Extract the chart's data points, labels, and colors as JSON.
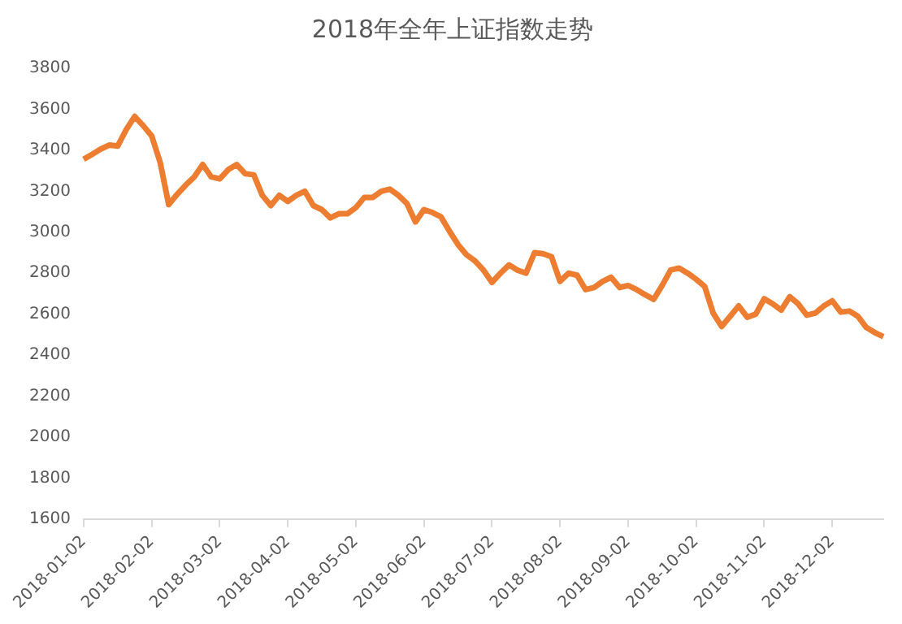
{
  "chart_data": {
    "type": "line",
    "title": "2018年全年上证指数走势",
    "categories": [
      "2018-01-02",
      null,
      null,
      null,
      null,
      null,
      null,
      null,
      "2018-02-02",
      null,
      null,
      null,
      null,
      null,
      null,
      null,
      "2018-03-02",
      null,
      null,
      null,
      null,
      null,
      null,
      null,
      "2018-04-02",
      null,
      null,
      null,
      null,
      null,
      null,
      null,
      "2018-05-02",
      null,
      null,
      null,
      null,
      null,
      null,
      null,
      "2018-06-02",
      null,
      null,
      null,
      null,
      null,
      null,
      null,
      "2018-07-02",
      null,
      null,
      null,
      null,
      null,
      null,
      null,
      "2018-08-02",
      null,
      null,
      null,
      null,
      null,
      null,
      null,
      "2018-09-02",
      null,
      null,
      null,
      null,
      null,
      null,
      null,
      "2018-10-02",
      null,
      null,
      null,
      null,
      null,
      null,
      null,
      "2018-11-02",
      null,
      null,
      null,
      null,
      null,
      null,
      null,
      "2018-12-02",
      null,
      null,
      null,
      null,
      null,
      null
    ],
    "series": [
      {
        "color": "#ed7d31",
        "values": [
          3356,
          3380,
          3405,
          3425,
          3420,
          3500,
          3565,
          3520,
          3470,
          3340,
          3135,
          3185,
          3230,
          3270,
          3330,
          3270,
          3260,
          3305,
          3330,
          3285,
          3280,
          3180,
          3130,
          3180,
          3150,
          3180,
          3200,
          3130,
          3110,
          3070,
          3090,
          3090,
          3120,
          3170,
          3170,
          3200,
          3210,
          3180,
          3140,
          3050,
          3110,
          3096,
          3075,
          3005,
          2940,
          2890,
          2860,
          2815,
          2755,
          2800,
          2840,
          2815,
          2800,
          2900,
          2895,
          2880,
          2760,
          2800,
          2790,
          2720,
          2730,
          2760,
          2780,
          2730,
          2740,
          2720,
          2695,
          2672,
          2740,
          2815,
          2825,
          2800,
          2770,
          2735,
          2605,
          2540,
          2590,
          2640,
          2585,
          2600,
          2675,
          2650,
          2620,
          2685,
          2650,
          2595,
          2605,
          2640,
          2665,
          2610,
          2615,
          2590,
          2535,
          2510,
          2490
        ]
      }
    ],
    "ylim": [
      1600,
      3800
    ],
    "yticks": [
      1600,
      1800,
      2000,
      2200,
      2400,
      2600,
      2800,
      3000,
      3200,
      3400,
      3600,
      3800
    ],
    "grid": false,
    "legend": false,
    "marker": "none",
    "line_style": "solid"
  }
}
